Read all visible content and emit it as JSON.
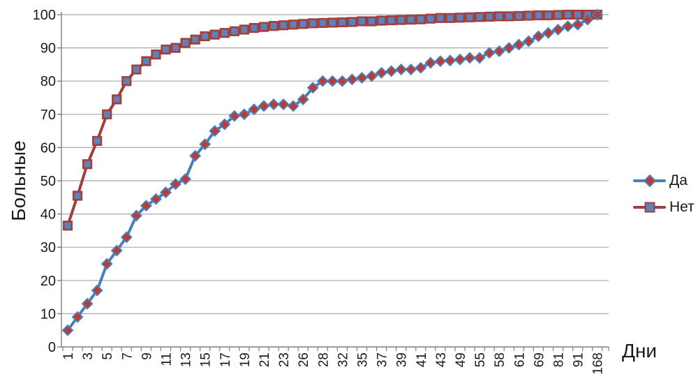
{
  "chart_data": {
    "type": "line",
    "title": "",
    "xlabel": "Дни",
    "ylabel": "Больные",
    "ylim": [
      0,
      100
    ],
    "y_ticks": [
      0,
      10,
      20,
      30,
      40,
      50,
      60,
      70,
      80,
      90,
      100
    ],
    "y_tick_labels": [
      "0",
      "10",
      "20",
      "30",
      "40",
      "50",
      "60",
      "70",
      "80",
      "90",
      "100"
    ],
    "x_tick_labels": [
      "1",
      "3",
      "5",
      "7",
      "9",
      "11",
      "13",
      "15",
      "17",
      "19",
      "21",
      "23",
      "26",
      "28",
      "32",
      "35",
      "37",
      "39",
      "41",
      "43",
      "49",
      "55",
      "58",
      "61",
      "69",
      "81",
      "91",
      "168"
    ],
    "label_every_other_point": true,
    "n_points": 55,
    "grid": "horizontal",
    "legend_position": "right",
    "series": [
      {
        "name": "Да",
        "marker": "diamond",
        "line_color": "#4a7ebc",
        "marker_fill": "#bf3a31",
        "marker_stroke": "#4a7ebc",
        "values": [
          5,
          9,
          13,
          17,
          25,
          29,
          33,
          39.5,
          42.5,
          44.5,
          46.5,
          49,
          50.5,
          57.5,
          61,
          65,
          67,
          69.5,
          70,
          71.5,
          72.5,
          73,
          73,
          72.5,
          74.5,
          78,
          80,
          80,
          80,
          80.5,
          81,
          81.5,
          82.5,
          83,
          83.5,
          83.5,
          84,
          85.5,
          86,
          86.2,
          86.5,
          87,
          87,
          88.5,
          89,
          90,
          91,
          92,
          93.5,
          94.5,
          95.5,
          96.5,
          97,
          98.5,
          100
        ]
      },
      {
        "name": "Нет",
        "marker": "square",
        "line_color": "#a03f3b",
        "marker_fill": "#5f81ba",
        "marker_stroke": "#a03f3b",
        "values": [
          36.5,
          45.5,
          55,
          62,
          70,
          74.5,
          80,
          83.5,
          86,
          88,
          89.5,
          90,
          91.5,
          92.5,
          93.5,
          94,
          94.5,
          95,
          95.5,
          96,
          96.3,
          96.6,
          96.8,
          97,
          97.2,
          97.4,
          97.5,
          97.6,
          97.7,
          97.8,
          98,
          98,
          98.2,
          98.3,
          98.4,
          98.5,
          98.6,
          98.8,
          99,
          99,
          99.1,
          99.2,
          99.3,
          99.4,
          99.5,
          99.5,
          99.6,
          99.7,
          99.8,
          99.8,
          99.9,
          100,
          100,
          100,
          100
        ]
      }
    ],
    "colors": {
      "grid": "#a8a8a8",
      "axis": "#7f7f7f",
      "text": "#1a1a1a",
      "background": "#ffffff"
    }
  }
}
